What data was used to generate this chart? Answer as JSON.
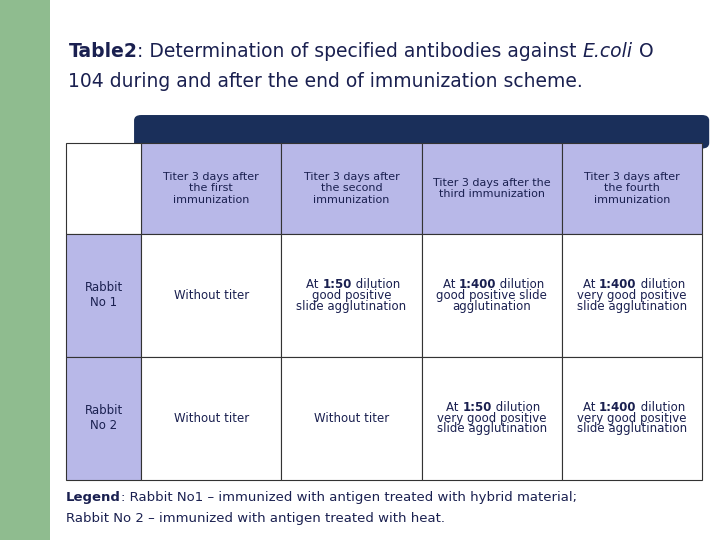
{
  "bg_color": "#ffffff",
  "slide_bg": "#8fbc8f",
  "header_bar_color": "#1a2f5a",
  "header_cell_bg": "#b8b8e8",
  "row_label_bg": "#b8b8e8",
  "data_cell_bg": "#ffffff",
  "border_color": "#333333",
  "text_color": "#1a2050",
  "title_line1_parts": [
    {
      "text": "Table2",
      "bold": true,
      "italic": false
    },
    {
      "text": ": Determination of specified antibodies against ",
      "bold": false,
      "italic": false
    },
    {
      "text": "E.coli",
      "bold": false,
      "italic": true
    },
    {
      "text": " O",
      "bold": false,
      "italic": false
    }
  ],
  "title_line2": "104 during and after the end of immunization scheme.",
  "header_labels": [
    "Titer 3 days after\nthe first\nimmunization",
    "Titer 3 days after\nthe second\nimmunization",
    "Titer 3 days after the\nthird immunization",
    "Titer 3 days after\nthe fourth\nimmunization"
  ],
  "row_labels": [
    "Rabbit\nNo 1",
    "Rabbit\nNo 2"
  ],
  "cell_data": [
    [
      [
        {
          "text": "Without titer",
          "bold": false
        }
      ],
      [
        {
          "text": "At ",
          "bold": false
        },
        {
          "text": "1:50",
          "bold": true
        },
        {
          "text": " dilution\ngood positive\nslide agglutination",
          "bold": false
        }
      ],
      [
        {
          "text": "At ",
          "bold": false
        },
        {
          "text": "1:400",
          "bold": true
        },
        {
          "text": " dilution\ngood positive slide\nagglutination",
          "bold": false
        }
      ],
      [
        {
          "text": "At ",
          "bold": false
        },
        {
          "text": "1:400",
          "bold": true
        },
        {
          "text": " dilution\nvery good positive\nslide agglutination",
          "bold": false
        }
      ]
    ],
    [
      [
        {
          "text": "Without titer",
          "bold": false
        }
      ],
      [
        {
          "text": "Without titer",
          "bold": false
        }
      ],
      [
        {
          "text": "At ",
          "bold": false
        },
        {
          "text": "1:50",
          "bold": true
        },
        {
          "text": " dilution\nvery good positive\nslide agglutination",
          "bold": false
        }
      ],
      [
        {
          "text": "At ",
          "bold": false
        },
        {
          "text": "1:400",
          "bold": true
        },
        {
          "text": " dilution\nvery good positive\nslide agglutination",
          "bold": false
        }
      ]
    ]
  ],
  "legend_parts": [
    {
      "text": "Legend",
      "bold": true
    },
    {
      "text": ": Rabbit No1 – immunized with antigen treated with hybrid material;\nRabbit No 2 – immunized with antigen treated with heat.",
      "bold": false
    }
  ],
  "font_size_title": 13.5,
  "font_size_header": 8.0,
  "font_size_cell": 8.5,
  "font_size_legend": 9.5
}
